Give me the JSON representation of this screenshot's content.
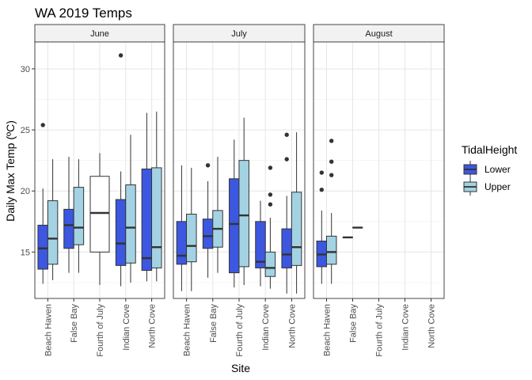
{
  "chart_data": {
    "type": "boxplot",
    "title": "WA 2019 Temps",
    "xlabel": "Site",
    "ylabel": "Daily Max Temp (ºC)",
    "ylim": [
      11.2,
      32.2
    ],
    "yticks": [
      15,
      20,
      25,
      30
    ],
    "grid": true,
    "legend_position": "right",
    "legend": {
      "title": "TidalHeight",
      "entries": [
        {
          "name": "Lower",
          "color": "#3c57e0"
        },
        {
          "name": "Upper",
          "color": "#a3d3e3"
        }
      ]
    },
    "categories": [
      "Beach Haven",
      "False Bay",
      "Fourth of July",
      "Indian Cove",
      "North Cove"
    ],
    "facets": [
      {
        "label": "June",
        "boxes": [
          {
            "site": "Beach Haven",
            "group": "Lower",
            "min": 12.4,
            "q1": 13.6,
            "median": 15.3,
            "q3": 17.2,
            "max": 20.2,
            "outliers": [
              25.4
            ]
          },
          {
            "site": "Beach Haven",
            "group": "Upper",
            "min": 12.7,
            "q1": 14.0,
            "median": 16.1,
            "q3": 19.2,
            "max": 22.6,
            "outliers": []
          },
          {
            "site": "False Bay",
            "group": "Lower",
            "min": 13.3,
            "q1": 15.3,
            "median": 17.2,
            "q3": 18.5,
            "max": 22.8,
            "outliers": []
          },
          {
            "site": "False Bay",
            "group": "Upper",
            "min": 13.3,
            "q1": 15.6,
            "median": 17.0,
            "q3": 20.3,
            "max": 22.6,
            "outliers": []
          },
          {
            "site": "Fourth of July",
            "group": "Both",
            "min": 12.3,
            "q1": 15.0,
            "median": 18.2,
            "q3": 21.2,
            "max": 23.1,
            "outliers": []
          },
          {
            "site": "Indian Cove",
            "group": "Lower",
            "min": 12.2,
            "q1": 13.9,
            "median": 15.7,
            "q3": 19.3,
            "max": 21.6,
            "outliers": [
              31.1
            ]
          },
          {
            "site": "Indian Cove",
            "group": "Upper",
            "min": 12.5,
            "q1": 14.1,
            "median": 17.0,
            "q3": 20.5,
            "max": 24.6,
            "outliers": []
          },
          {
            "site": "North Cove",
            "group": "Lower",
            "min": 12.6,
            "q1": 13.5,
            "median": 14.5,
            "q3": 21.8,
            "max": 26.4,
            "outliers": []
          },
          {
            "site": "North Cove",
            "group": "Upper",
            "min": 12.6,
            "q1": 13.7,
            "median": 15.4,
            "q3": 21.9,
            "max": 26.5,
            "outliers": []
          }
        ]
      },
      {
        "label": "July",
        "boxes": [
          {
            "site": "Beach Haven",
            "group": "Lower",
            "min": 11.8,
            "q1": 14.0,
            "median": 14.7,
            "q3": 17.5,
            "max": 22.1,
            "outliers": []
          },
          {
            "site": "Beach Haven",
            "group": "Upper",
            "min": 11.8,
            "q1": 14.2,
            "median": 15.5,
            "q3": 18.1,
            "max": 21.9,
            "outliers": []
          },
          {
            "site": "False Bay",
            "group": "Lower",
            "min": 12.9,
            "q1": 15.3,
            "median": 16.3,
            "q3": 17.7,
            "max": 20.8,
            "outliers": [
              22.1
            ]
          },
          {
            "site": "False Bay",
            "group": "Upper",
            "min": 13.3,
            "q1": 15.4,
            "median": 16.9,
            "q3": 18.4,
            "max": 22.8,
            "outliers": []
          },
          {
            "site": "Fourth of July",
            "group": "Lower",
            "min": 12.1,
            "q1": 13.3,
            "median": 17.3,
            "q3": 21.0,
            "max": 24.2,
            "outliers": []
          },
          {
            "site": "Fourth of July",
            "group": "Upper",
            "min": 12.3,
            "q1": 13.8,
            "median": 18.0,
            "q3": 22.5,
            "max": 26.0,
            "outliers": []
          },
          {
            "site": "Indian Cove",
            "group": "Lower",
            "min": 12.2,
            "q1": 13.7,
            "median": 14.2,
            "q3": 17.5,
            "max": 19.2,
            "outliers": []
          },
          {
            "site": "Indian Cove",
            "group": "Upper",
            "min": 12.0,
            "q1": 13.0,
            "median": 13.7,
            "q3": 15.0,
            "max": 17.8,
            "outliers": [
              21.9,
              19.7,
              18.9
            ]
          },
          {
            "site": "North Cove",
            "group": "Lower",
            "min": 11.6,
            "q1": 13.7,
            "median": 14.8,
            "q3": 16.9,
            "max": 19.6,
            "outliers": [
              24.6,
              22.6
            ]
          },
          {
            "site": "North Cove",
            "group": "Upper",
            "min": 11.6,
            "q1": 13.9,
            "median": 15.4,
            "q3": 19.9,
            "max": 24.8,
            "outliers": []
          }
        ]
      },
      {
        "label": "August",
        "boxes": [
          {
            "site": "Beach Haven",
            "group": "Lower",
            "min": 12.4,
            "q1": 13.8,
            "median": 14.8,
            "q3": 15.9,
            "max": 18.4,
            "outliers": [
              21.5,
              20.1
            ]
          },
          {
            "site": "Beach Haven",
            "group": "Upper",
            "min": 12.4,
            "q1": 14.0,
            "median": 15.0,
            "q3": 16.3,
            "max": 18.2,
            "outliers": [
              24.1,
              22.4,
              21.3
            ]
          },
          {
            "site": "False Bay",
            "group": "Lower",
            "min": 16.2,
            "q1": 16.2,
            "median": 16.2,
            "q3": 16.2,
            "max": 16.2,
            "outliers": []
          },
          {
            "site": "False Bay",
            "group": "Upper",
            "min": 17.0,
            "q1": 17.0,
            "median": 17.0,
            "q3": 17.0,
            "max": 17.0,
            "outliers": []
          }
        ]
      }
    ]
  }
}
